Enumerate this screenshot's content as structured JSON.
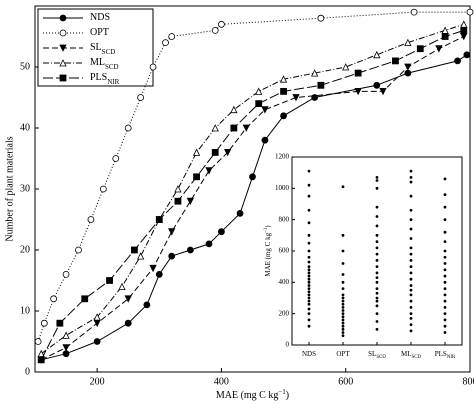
{
  "chart_data": [
    {
      "type": "line",
      "x_label": {
        "text": "MAE (mg C kg",
        "sup": "−1",
        "end": ")"
      },
      "y_label": "Number of plant materials",
      "xlim": [
        100,
        800
      ],
      "xticks": [
        200,
        400,
        600,
        800
      ],
      "ylim": [
        0,
        60
      ],
      "yticks": [
        0,
        10,
        20,
        30,
        40,
        50
      ],
      "legend": "top-left",
      "series": [
        {
          "name": "NDS",
          "sub": null,
          "marker": "circle-filled",
          "dash": "solid",
          "color": "#000000",
          "x": [
            110,
            150,
            200,
            250,
            280,
            300,
            320,
            350,
            380,
            400,
            430,
            450,
            470,
            500,
            550,
            650,
            700,
            780,
            795
          ],
          "values": [
            2,
            3,
            5,
            8,
            11,
            16,
            19,
            20,
            21,
            23,
            26,
            32,
            38,
            42,
            45,
            47,
            49,
            51,
            52
          ]
        },
        {
          "name": "OPT",
          "sub": null,
          "marker": "circle-open",
          "dash": "dotted",
          "color": "#000000",
          "x": [
            105,
            115,
            130,
            150,
            170,
            190,
            210,
            230,
            250,
            270,
            290,
            310,
            320,
            390,
            400,
            560,
            710,
            800
          ],
          "values": [
            5,
            8,
            12,
            16,
            20,
            25,
            30,
            35,
            40,
            45,
            50,
            54,
            55,
            56,
            57,
            58,
            59,
            59
          ]
        },
        {
          "name": "SL",
          "sub": "SCD",
          "marker": "triangle-down-filled",
          "dash": "dash",
          "color": "#000000",
          "x": [
            110,
            150,
            200,
            250,
            290,
            320,
            350,
            380,
            410,
            440,
            470,
            520,
            620,
            660,
            700,
            750,
            790
          ],
          "values": [
            2,
            4,
            8,
            12,
            17,
            23,
            28,
            33,
            36,
            40,
            43,
            45,
            46,
            46,
            50,
            53,
            55
          ]
        },
        {
          "name": "ML",
          "sub": "SCD",
          "marker": "triangle-up-open",
          "dash": "dash-dot",
          "color": "#000000",
          "x": [
            110,
            150,
            200,
            240,
            270,
            300,
            330,
            360,
            390,
            420,
            460,
            500,
            550,
            600,
            650,
            700,
            760,
            790
          ],
          "values": [
            3,
            6,
            9,
            14,
            19,
            25,
            30,
            36,
            40,
            43,
            46,
            48,
            49,
            50,
            52,
            54,
            56,
            57
          ]
        },
        {
          "name": "PLS",
          "sub": "NIR",
          "marker": "square-filled",
          "dash": "long-dash",
          "color": "#000000",
          "x": [
            110,
            140,
            180,
            220,
            260,
            300,
            330,
            360,
            390,
            420,
            460,
            500,
            560,
            620,
            680,
            720,
            760,
            790
          ],
          "values": [
            2,
            8,
            12,
            15,
            20,
            25,
            28,
            32,
            36,
            40,
            44,
            46,
            47,
            49,
            51,
            53,
            55,
            56
          ]
        }
      ]
    },
    {
      "type": "strip",
      "y_label": {
        "text": "MAE (mg C kg",
        "sup": "−1",
        "end": ")"
      },
      "ylim": [
        0,
        1200
      ],
      "yticks": [
        0,
        200,
        400,
        600,
        800,
        1000,
        1200
      ],
      "categories": [
        {
          "name": "NDS",
          "sub": null
        },
        {
          "name": "OPT",
          "sub": null
        },
        {
          "name": "SL",
          "sub": "SCD"
        },
        {
          "name": "ML",
          "sub": "SCD"
        },
        {
          "name": "PLS",
          "sub": "NIR"
        }
      ],
      "color": "#000000",
      "values": [
        [
          120,
          160,
          200,
          230,
          260,
          280,
          300,
          320,
          340,
          360,
          380,
          400,
          420,
          440,
          460,
          480,
          500,
          530,
          560,
          600,
          650,
          700,
          780,
          860,
          950,
          1020,
          1110
        ],
        [
          60,
          80,
          100,
          120,
          140,
          160,
          180,
          200,
          220,
          240,
          260,
          280,
          300,
          320,
          360,
          400,
          450,
          520,
          600,
          700,
          1010
        ],
        [
          100,
          150,
          200,
          250,
          280,
          300,
          330,
          360,
          400,
          430,
          460,
          500,
          540,
          580,
          620,
          660,
          700,
          760,
          820,
          880,
          1000,
          1050,
          1070
        ],
        [
          90,
          130,
          170,
          200,
          240,
          280,
          320,
          350,
          380,
          420,
          460,
          500,
          540,
          580,
          620,
          680,
          740,
          800,
          860,
          950,
          1040,
          1070,
          1110
        ],
        [
          80,
          120,
          160,
          200,
          240,
          280,
          320,
          360,
          400,
          440,
          480,
          520,
          560,
          600,
          660,
          720,
          800,
          880,
          960,
          1060
        ]
      ]
    }
  ]
}
